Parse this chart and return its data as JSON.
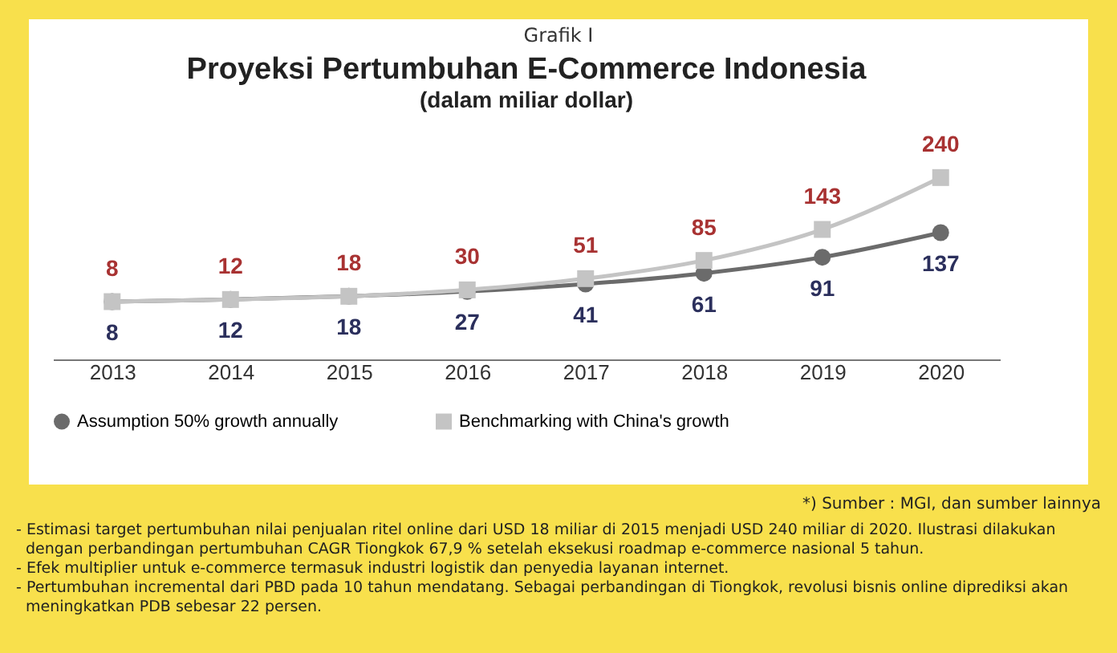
{
  "chart_data": {
    "type": "line",
    "title": "Proyeksi Pertumbuhan E-Commerce Indonesia",
    "subtitle": "(dalam miliar dollar)",
    "categories": [
      "2013",
      "2014",
      "2015",
      "2016",
      "2017",
      "2018",
      "2019",
      "2020"
    ],
    "series": [
      {
        "name": "Assumption 50% growth annually",
        "color": "#6b6b6b",
        "marker": "circle",
        "values": [
          8,
          12,
          18,
          27,
          41,
          61,
          91,
          137
        ]
      },
      {
        "name": "Benchmarking with China's growth",
        "color": "#c4c4c4",
        "marker": "square",
        "values": [
          8,
          12,
          18,
          30,
          51,
          85,
          143,
          240
        ]
      }
    ],
    "data_labels": true,
    "legend": "bottom",
    "tick_labels": "x",
    "grid": false,
    "annotations": [
      "Grafik I",
      "*) Sumber : MGI, dan sumber lainnya",
      "- Estimasi target pertumbuhan nilai penjualan ritel online dari USD 18 miliar di 2015 menjadi USD 240 miliar di 2020. Ilustrasi dilakukan dengan perbandingan pertumbuhan CAGR Tiongkok 67,9 % setelah eksekusi roadmap e-commerce nasional 5 tahun.",
      "- Efek multiplier untuk e-commerce termasuk industri logistik dan penyedia layanan internet.",
      "- Pertumbuhan incremental dari PBD pada 10 tahun mendatang. Sebagai perbandingan di Tiongkok, revolusi bisnis online diprediksi akan meningkatkan PDB sebesar 22 persen."
    ]
  }
}
